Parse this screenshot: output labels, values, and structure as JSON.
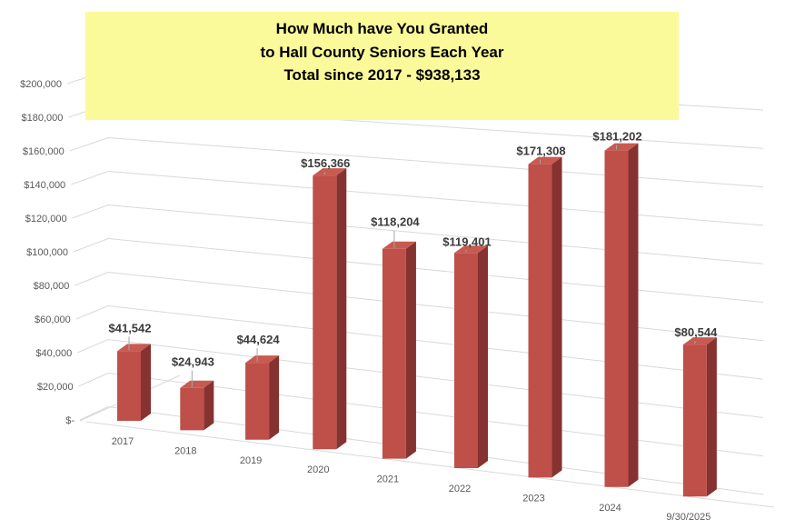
{
  "title": {
    "line1": "How Much have You Granted",
    "line2": "to Hall County Seniors Each Year",
    "line3": "Total since 2017 - $938,133",
    "background": "#FBFA9B"
  },
  "chart_data": {
    "type": "bar",
    "variant": "3d-column",
    "title": "How Much have You Granted to Hall County Seniors Each Year - Total since 2017 - $938,133",
    "total_since_2017": "$938,133",
    "categories": [
      "2017",
      "2018",
      "2019",
      "2020",
      "2021",
      "2022",
      "2023",
      "2024",
      "9/30/2025"
    ],
    "values": [
      41542,
      24943,
      44624,
      156366,
      118204,
      119401,
      171308,
      181202,
      80544
    ],
    "data_labels": [
      "$41,542",
      "$24,943",
      "$44,624",
      "$156,366",
      "$118,204",
      "$119,401",
      "$171,308",
      "$181,202",
      "$80,544"
    ],
    "xlabel": "",
    "ylabel": "",
    "ylim": [
      0,
      200000
    ],
    "y_step": 20000,
    "y_tick_labels": [
      "$200,000",
      "$180,000",
      "$160,000",
      "$140,000",
      "$120,000",
      "$100,000",
      "$80,000",
      "$60,000",
      "$40,000",
      "$20,000",
      "$-"
    ],
    "grid": true,
    "legend": "none",
    "colors": {
      "bar_front": "#BE4F49",
      "bar_side": "#853230",
      "bar_top": "#C75B51",
      "gridline": "#D9D9D9",
      "axis_label": "#595959",
      "data_label": "#3B3B3B",
      "leader_line": "#A6A6A6",
      "background": "#FFFFFF"
    }
  }
}
